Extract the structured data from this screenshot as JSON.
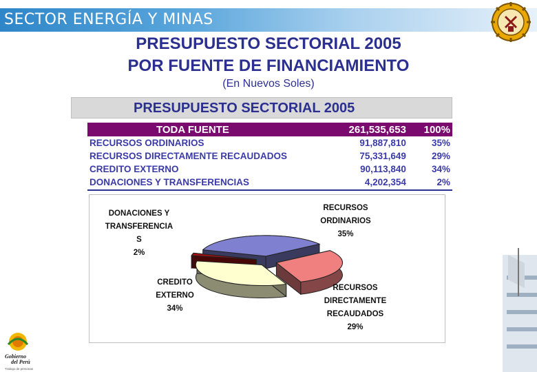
{
  "header": {
    "sector_title": "SECTOR ENERGÍA Y MINAS",
    "title_line1": "PRESUPUESTO  SECTORIAL 2005",
    "title_line2": "POR FUENTE DE FINANCIAMIENTO",
    "subtitle": "(En Nuevos Soles)"
  },
  "banner": {
    "text": "PRESUPUESTO SECTORIAL  2005"
  },
  "table": {
    "total": {
      "label": "TODA FUENTE",
      "amount": "261,535,653",
      "percent": "100%"
    },
    "rows": [
      {
        "label": "RECURSOS ORDINARIOS",
        "amount": "91,887,810",
        "percent": "35%"
      },
      {
        "label": "RECURSOS DIRECTAMENTE RECAUDADOS",
        "amount": "75,331,649",
        "percent": "29%"
      },
      {
        "label": "CREDITO EXTERNO",
        "amount": "90,113,840",
        "percent": "34%"
      },
      {
        "label": "DONACIONES Y TRANSFERENCIAS",
        "amount": "4,202,354",
        "percent": "2%"
      }
    ]
  },
  "chart_data": {
    "type": "pie",
    "title": "",
    "slices": [
      {
        "name": "RECURSOS ORDINARIOS",
        "value": 35,
        "color": "#8080d0"
      },
      {
        "name": "RECURSOS DIRECTAMENTE RECAUDADOS",
        "value": 29,
        "color": "#f08080"
      },
      {
        "name": "CREDITO EXTERNO",
        "value": 34,
        "color": "#ffffd0"
      },
      {
        "name": "DONACIONES Y TRANSFERENCIAS",
        "value": 2,
        "color": "#a01010"
      }
    ],
    "labels": {
      "donaciones": [
        "DONACIONES Y",
        "TRANSFERENCIA",
        "S",
        "2%"
      ],
      "ordinarios": [
        "RECURSOS",
        "ORDINARIOS",
        "35%"
      ],
      "credito": [
        "CREDITO",
        "EXTERNO",
        "34%"
      ],
      "directamente": [
        "RECURSOS",
        "DIRECTAMENTE",
        "RECAUDADOS",
        "29%"
      ]
    }
  },
  "footer": {
    "logo_text_1": "Gobierno",
    "logo_text_2": "del Perú",
    "logo_tagline": "Trabajo de personas"
  },
  "colors": {
    "title_blue": "#2b2f8f",
    "head_purple": "#7b0a6e",
    "table_text": "#3a3aa8"
  }
}
